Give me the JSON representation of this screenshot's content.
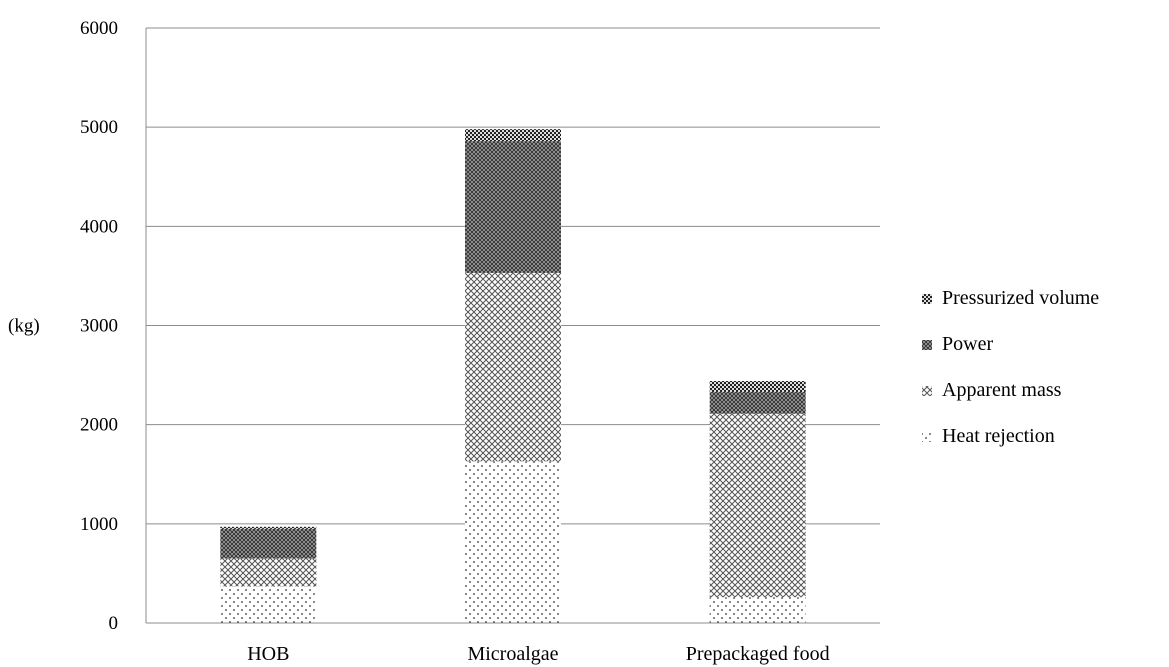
{
  "chart_data": {
    "type": "bar",
    "stacked": true,
    "categories": [
      "HOB",
      "Microalgae",
      "Prepackaged food"
    ],
    "series": [
      {
        "name": "Heat rejection",
        "values": [
          370,
          1630,
          260
        ],
        "pattern": "dots-sparse"
      },
      {
        "name": "Apparent mass",
        "values": [
          280,
          1900,
          1850
        ],
        "pattern": "crosshatch-light"
      },
      {
        "name": "Power",
        "values": [
          300,
          1330,
          220
        ],
        "pattern": "crosshatch-dense"
      },
      {
        "name": "Pressurized volume",
        "values": [
          20,
          120,
          110
        ],
        "pattern": "checker-dark"
      }
    ],
    "ylabel": "(kg)",
    "ylim": [
      0,
      6000
    ],
    "yticks": [
      0,
      1000,
      2000,
      3000,
      4000,
      5000,
      6000
    ],
    "grid": true,
    "legend_position": "right",
    "legend_order": [
      "Pressurized volume",
      "Power",
      "Apparent mass",
      "Heat rejection"
    ]
  }
}
